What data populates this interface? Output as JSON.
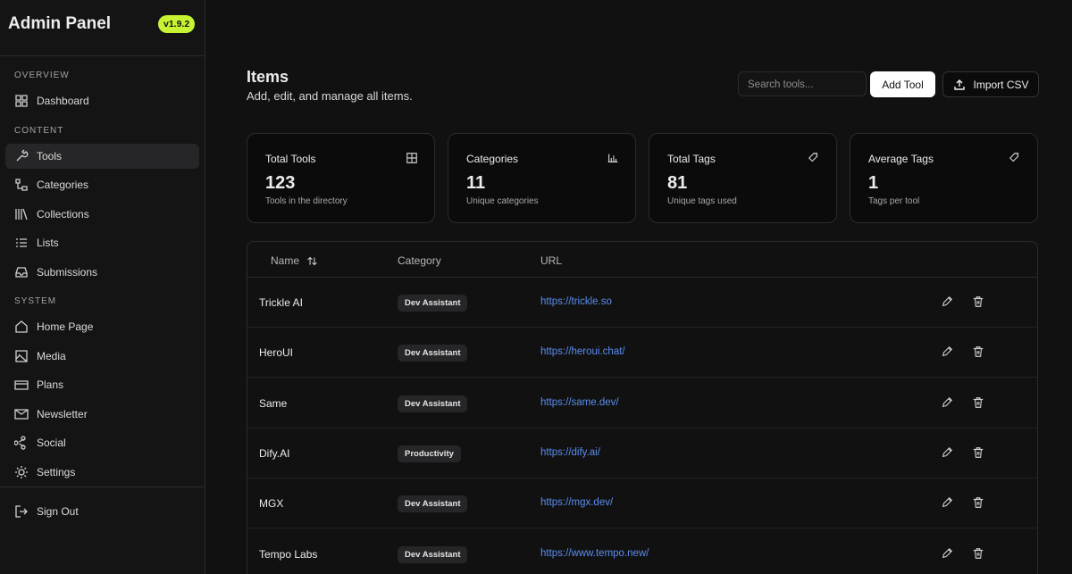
{
  "sidebar": {
    "title": "Admin Panel",
    "version": "v1.9.2",
    "sections": [
      {
        "heading": "OVERVIEW",
        "items": [
          "Dashboard"
        ]
      },
      {
        "heading": "CONTENT",
        "items": [
          "Tools",
          "Categories",
          "Collections",
          "Lists",
          "Submissions"
        ]
      },
      {
        "heading": "SYSTEM",
        "items": [
          "Home Page",
          "Media",
          "Plans",
          "Newsletter",
          "Social",
          "Settings"
        ]
      }
    ],
    "sign_out": "Sign Out"
  },
  "header": {
    "title": "Items",
    "subtitle": "Add, edit, and manage all items.",
    "search_placeholder": "Search tools...",
    "add_button": "Add Tool",
    "import_button": "Import CSV"
  },
  "stats": [
    {
      "label": "Total Tools",
      "value": 123,
      "note": "Tools in the directory"
    },
    {
      "label": "Categories",
      "value": 11,
      "note": "Unique categories"
    },
    {
      "label": "Total Tags",
      "value": 81,
      "note": "Unique tags used"
    },
    {
      "label": "Average Tags",
      "value": 1,
      "note": "Tags per tool"
    }
  ],
  "table": {
    "columns": [
      "Name",
      "Category",
      "URL"
    ],
    "rows": [
      [
        "Trickle AI",
        "Dev Assistant",
        "https://trickle.so"
      ],
      [
        "HeroUI",
        "Dev Assistant",
        "https://heroui.chat/"
      ],
      [
        "Same",
        "Dev Assistant",
        "https://same.dev/"
      ],
      [
        "Dify.AI",
        "Productivity",
        "https://dify.ai/"
      ],
      [
        "MGX",
        "Dev Assistant",
        "https://mgx.dev/"
      ],
      [
        "Tempo Labs",
        "Dev Assistant",
        "https://www.tempo.new/"
      ]
    ]
  }
}
